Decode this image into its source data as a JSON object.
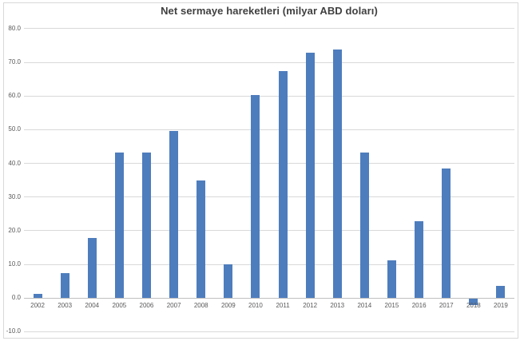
{
  "chart_data": {
    "type": "bar",
    "title": "Net sermaye hareketleri (milyar ABD doları)",
    "categories": [
      "2002",
      "2003",
      "2004",
      "2005",
      "2006",
      "2007",
      "2008",
      "2009",
      "2010",
      "2011",
      "2012",
      "2013",
      "2014",
      "2015",
      "2016",
      "2017",
      "2018",
      "2019"
    ],
    "values": [
      1.2,
      7.2,
      17.7,
      43.0,
      43.0,
      49.4,
      34.9,
      9.9,
      60.1,
      67.3,
      72.7,
      73.6,
      43.0,
      11.1,
      22.8,
      38.3,
      -2.0,
      3.4
    ],
    "xlabel": "",
    "ylabel": "",
    "ylim": [
      -10,
      80
    ],
    "ytick_values": [
      80,
      70,
      60,
      50,
      40,
      30,
      20,
      10,
      0,
      -10
    ],
    "ytick_labels": [
      "80.0",
      "70.0",
      "60.0",
      "50.0",
      "40.0",
      "30.0",
      "20.0",
      "10.0",
      "0.0",
      "-10.0"
    ],
    "grid": true,
    "legend": "none",
    "colors": {
      "bar": "#4E7DBD",
      "gridline": "#D9D9D9",
      "axis_line": "#BFBFBF",
      "tick_label": "#595959",
      "title": "#404040",
      "background": "#FFFFFF",
      "border": "#D9D9D9"
    }
  }
}
